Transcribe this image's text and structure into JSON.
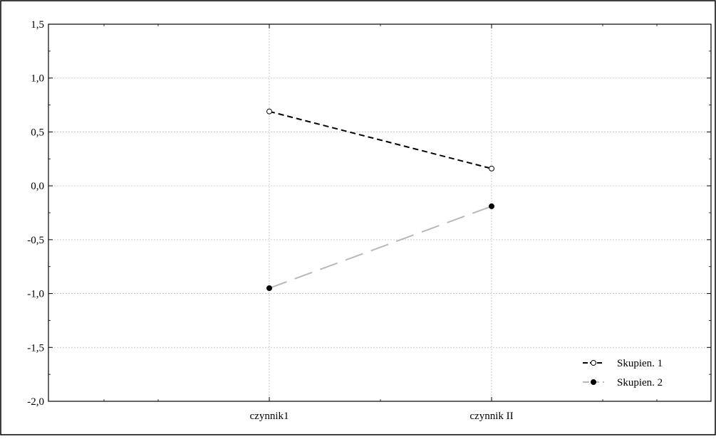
{
  "chart_data": {
    "type": "line",
    "title": "",
    "xlabel": "",
    "ylabel": "",
    "categories": [
      "czynnik1",
      "czynnik II"
    ],
    "ylim": [
      -2.0,
      1.5
    ],
    "yticks": [
      "1,5",
      "1,0",
      "0,5",
      "0,0",
      "-0,5",
      "-1,0",
      "-1,5",
      "-2,0"
    ],
    "ytick_values": [
      1.5,
      1.0,
      0.5,
      0.0,
      -0.5,
      -1.0,
      -1.5,
      -2.0
    ],
    "grid": true,
    "legend_position": "bottom-right",
    "series": [
      {
        "name": "Skupien. 1",
        "values": [
          0.69,
          0.16
        ],
        "color": "#000000",
        "marker": "open-circle",
        "line_style": "short-dash"
      },
      {
        "name": "Skupien. 2",
        "values": [
          -0.95,
          -0.19
        ],
        "color": "#b8b8b8",
        "marker": "filled-circle",
        "line_style": "long-dash"
      }
    ]
  }
}
